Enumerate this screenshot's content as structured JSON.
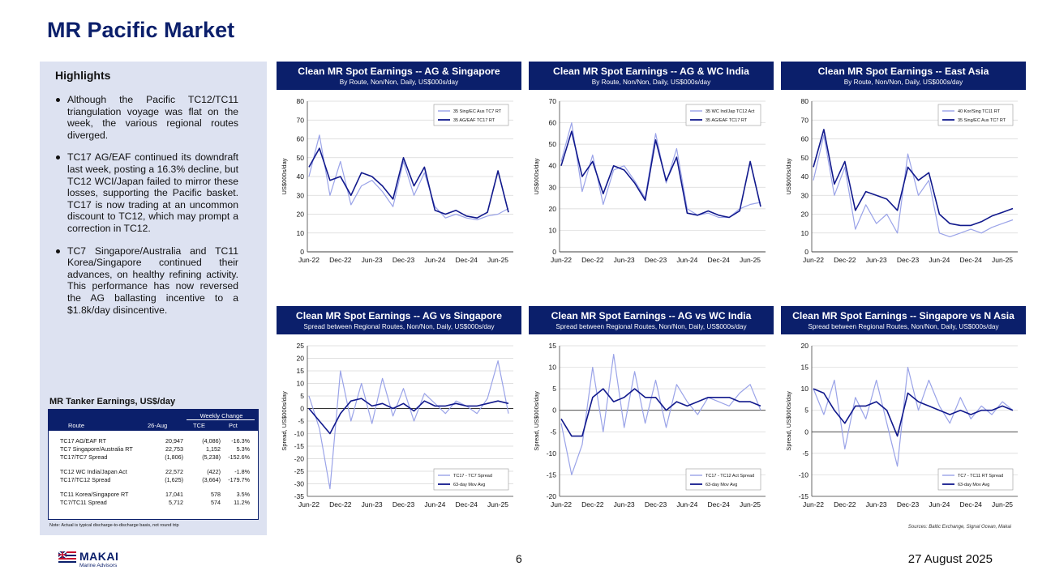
{
  "page": {
    "title": "MR Pacific Market",
    "page_number": "6",
    "date": "27 August 2025",
    "sources": "Sources: Baltic Exchange, Signal Ocean, Makai",
    "logo": {
      "name": "MAKAI",
      "subtitle": "Marine Advisors"
    }
  },
  "highlights": {
    "title": "Highlights",
    "bullets": [
      "Although the Pacific TC12/TC11 triangulation voyage was flat on the week, the various regional routes diverged.",
      "TC17 AG/EAF continued its downdraft last week, posting a 16.3% decline, but TC12 WCI/Japan failed to mirror these losses, supporting the Pacific basket. TC17 is now trading at an uncommon discount to TC12, which may prompt a correction in TC12.",
      "TC7 Singapore/Australia and TC11 Korea/Singapore continued their advances, on healthy refining activity.  This performance has now reversed the AG ballasting incentive to a $1.8k/day disincentive."
    ]
  },
  "earnings_table": {
    "title": "MR Tanker Earnings, US$/day",
    "headers": {
      "route": "Route",
      "date": "26-Aug",
      "weekly_change": "Weekly Change",
      "tce": "TCE",
      "pct": "Pct"
    },
    "rows": [
      {
        "route": "TC17 AG/EAF RT",
        "value": "20,947",
        "tce": "(4,086)",
        "pct": "-16.3%"
      },
      {
        "route": "TC7 Singapore/Australia RT",
        "value": "22,753",
        "tce": "1,152",
        "pct": "5.3%"
      },
      {
        "route": "TC17/TC7 Spread",
        "value": "(1,806)",
        "tce": "(5,238)",
        "pct": "-152.6%"
      },
      {
        "route": "TC12 WC India/Japan Act",
        "value": "22,572",
        "tce": "(422)",
        "pct": "-1.8%"
      },
      {
        "route": "TC17/TC12 Spread",
        "value": "(1,625)",
        "tce": "(3,664)",
        "pct": "-179.7%"
      },
      {
        "route": "TC11 Korea/Singapore RT",
        "value": "17,041",
        "tce": "578",
        "pct": "3.5%"
      },
      {
        "route": "TC7/TC11 Spread",
        "value": "5,712",
        "tce": "574",
        "pct": "11.2%"
      }
    ],
    "note": "Note: Actual is typical discharge-to-discharge basis, not round trip"
  },
  "colors": {
    "navy": "#0b1f6b",
    "light_series": "#9aa3e8",
    "dark_series": "#11198c",
    "panel_bg": "#dde2f1"
  },
  "chart_data": [
    {
      "type": "line",
      "title": "Clean MR Spot Earnings -- AG & Singapore",
      "subtitle": "By Route, Non/Non, Daily, US$000s/day",
      "ylabel": "US$000s/day",
      "ylim": [
        0,
        80
      ],
      "yticks": [
        0,
        10,
        20,
        30,
        40,
        50,
        60,
        70,
        80
      ],
      "xticks": [
        "Jun-22",
        "Dec-22",
        "Jun-23",
        "Dec-23",
        "Jun-24",
        "Dec-24",
        "Jun-25"
      ],
      "x": [
        "2022-06",
        "2022-08",
        "2022-10",
        "2022-12",
        "2023-02",
        "2023-04",
        "2023-06",
        "2023-08",
        "2023-10",
        "2023-12",
        "2024-02",
        "2024-04",
        "2024-06",
        "2024-08",
        "2024-10",
        "2024-12",
        "2025-02",
        "2025-04",
        "2025-06",
        "2025-08"
      ],
      "legend_position": "top-right",
      "series": [
        {
          "name": "35 Sing/EC Aus TC7 RT",
          "style": "light",
          "values": [
            40,
            62,
            30,
            48,
            25,
            35,
            38,
            32,
            24,
            48,
            30,
            42,
            24,
            18,
            20,
            18,
            17,
            19,
            20,
            23
          ]
        },
        {
          "name": "35 AG/EAF TC17 RT",
          "style": "dark",
          "values": [
            45,
            55,
            38,
            40,
            30,
            42,
            40,
            35,
            28,
            50,
            35,
            45,
            22,
            20,
            22,
            19,
            18,
            21,
            43,
            21
          ]
        }
      ]
    },
    {
      "type": "line",
      "title": "Clean MR Spot Earnings -- AG & WC India",
      "subtitle": "By Route, Non/Non, Daily, US$000s/day",
      "ylabel": "US$000s/day",
      "ylim": [
        0,
        70
      ],
      "yticks": [
        0,
        10,
        20,
        30,
        40,
        50,
        60,
        70
      ],
      "xticks": [
        "Jun-22",
        "Dec-22",
        "Jun-23",
        "Dec-23",
        "Jun-24",
        "Dec-24",
        "Jun-25"
      ],
      "x": [
        "2022-06",
        "2022-08",
        "2022-10",
        "2022-12",
        "2023-02",
        "2023-04",
        "2023-06",
        "2023-08",
        "2023-10",
        "2023-12",
        "2024-02",
        "2024-04",
        "2024-06",
        "2024-08",
        "2024-10",
        "2024-12",
        "2025-02",
        "2025-04",
        "2025-06",
        "2025-08"
      ],
      "legend_position": "top-right",
      "series": [
        {
          "name": "35 WC Ind/Jap TC12 Act",
          "style": "light",
          "values": [
            42,
            60,
            28,
            45,
            22,
            38,
            40,
            33,
            25,
            55,
            32,
            48,
            20,
            17,
            18,
            16,
            16,
            20,
            22,
            23
          ]
        },
        {
          "name": "35 AG/EAF TC17 RT",
          "style": "dark",
          "values": [
            40,
            56,
            35,
            42,
            27,
            40,
            38,
            32,
            24,
            52,
            33,
            44,
            18,
            17,
            19,
            17,
            16,
            19,
            42,
            21
          ]
        }
      ]
    },
    {
      "type": "line",
      "title": "Clean MR Spot Earnings -- East Asia",
      "subtitle": "By Route, Non/Non, Daily, US$000s/day",
      "ylabel": "US$000s/day",
      "ylim": [
        0,
        80
      ],
      "yticks": [
        0,
        10,
        20,
        30,
        40,
        50,
        60,
        70,
        80
      ],
      "xticks": [
        "Jun-22",
        "Dec-22",
        "Jun-23",
        "Dec-23",
        "Jun-24",
        "Dec-24",
        "Jun-25"
      ],
      "x": [
        "2022-06",
        "2022-08",
        "2022-10",
        "2022-12",
        "2023-02",
        "2023-04",
        "2023-06",
        "2023-08",
        "2023-10",
        "2023-12",
        "2024-02",
        "2024-04",
        "2024-06",
        "2024-08",
        "2024-10",
        "2024-12",
        "2025-02",
        "2025-04",
        "2025-06",
        "2025-08"
      ],
      "legend_position": "top-right",
      "series": [
        {
          "name": "40 Kor/Sing TC11 RT",
          "style": "light",
          "values": [
            38,
            62,
            30,
            45,
            12,
            25,
            15,
            20,
            10,
            52,
            30,
            38,
            10,
            8,
            10,
            12,
            10,
            13,
            15,
            17
          ]
        },
        {
          "name": "35 Sing/EC Aus TC7 RT",
          "style": "dark",
          "values": [
            45,
            65,
            36,
            48,
            22,
            32,
            30,
            28,
            22,
            45,
            38,
            42,
            20,
            15,
            14,
            14,
            16,
            19,
            21,
            23
          ]
        }
      ]
    },
    {
      "type": "line",
      "title": "Clean MR Spot Earnings -- AG vs Singapore",
      "subtitle": "Spread between Regional Routes, Non/Non, Daily, US$000s/day",
      "ylabel": "Spread, US$000s/day",
      "ylim": [
        -35,
        25
      ],
      "yticks": [
        -35,
        -30,
        -25,
        -20,
        -15,
        -10,
        -5,
        0,
        5,
        10,
        15,
        20,
        25
      ],
      "xticks": [
        "Jun-22",
        "Dec-22",
        "Jun-23",
        "Dec-23",
        "Jun-24",
        "Dec-24",
        "Jun-25"
      ],
      "x": [
        "2022-06",
        "2022-08",
        "2022-10",
        "2022-12",
        "2023-02",
        "2023-04",
        "2023-06",
        "2023-08",
        "2023-10",
        "2023-12",
        "2024-02",
        "2024-04",
        "2024-06",
        "2024-08",
        "2024-10",
        "2024-12",
        "2025-02",
        "2025-04",
        "2025-06",
        "2025-08"
      ],
      "legend_position": "bottom-right",
      "series": [
        {
          "name": "TC17 - TC7 Spread",
          "style": "light",
          "values": [
            5,
            -8,
            -32,
            15,
            -5,
            10,
            -6,
            12,
            -3,
            8,
            -5,
            6,
            2,
            -2,
            3,
            1,
            -2,
            4,
            19,
            -2
          ]
        },
        {
          "name": "63-day Mov Avg",
          "style": "dark",
          "values": [
            0,
            -5,
            -10,
            -2,
            3,
            4,
            1,
            2,
            0,
            2,
            -1,
            3,
            1,
            1,
            2,
            1,
            1,
            2,
            3,
            2
          ]
        }
      ]
    },
    {
      "type": "line",
      "title": "Clean MR Spot Earnings -- AG vs WC India",
      "subtitle": "Spread between Regional Routes, Non/Non, Daily, US$000s/day",
      "ylabel": "Spread, US$000s/day",
      "ylim": [
        -20,
        15
      ],
      "yticks": [
        -20,
        -15,
        -10,
        -5,
        0,
        5,
        10,
        15
      ],
      "xticks": [
        "Jun-22",
        "Dec-22",
        "Jun-23",
        "Dec-23",
        "Jun-24",
        "Dec-24",
        "Jun-25"
      ],
      "x": [
        "2022-06",
        "2022-08",
        "2022-10",
        "2022-12",
        "2023-02",
        "2023-04",
        "2023-06",
        "2023-08",
        "2023-10",
        "2023-12",
        "2024-02",
        "2024-04",
        "2024-06",
        "2024-08",
        "2024-10",
        "2024-12",
        "2025-02",
        "2025-04",
        "2025-06",
        "2025-08"
      ],
      "legend_position": "bottom-right",
      "series": [
        {
          "name": "TC17 - TC12 Act Spread",
          "style": "light",
          "values": [
            -3,
            -15,
            -8,
            10,
            -5,
            13,
            -4,
            9,
            -3,
            7,
            -4,
            6,
            2,
            -1,
            3,
            2,
            1,
            4,
            6,
            0
          ]
        },
        {
          "name": "63-day Mov Avg",
          "style": "dark",
          "values": [
            -2,
            -6,
            -6,
            3,
            5,
            2,
            3,
            5,
            3,
            3,
            0,
            2,
            1,
            2,
            3,
            3,
            3,
            2,
            2,
            1
          ]
        }
      ]
    },
    {
      "type": "line",
      "title": "Clean MR Spot Earnings -- Singapore vs N Asia",
      "subtitle": "Spread between Regional Routes, Non/Non, Daily, US$000s/day",
      "ylabel": "Spread, US$000s/day",
      "ylim": [
        -15,
        20
      ],
      "yticks": [
        -15,
        -10,
        -5,
        0,
        5,
        10,
        15,
        20
      ],
      "xticks": [
        "Jun-22",
        "Dec-22",
        "Jun-23",
        "Dec-23",
        "Jun-24",
        "Dec-24",
        "Jun-25"
      ],
      "x": [
        "2022-06",
        "2022-08",
        "2022-10",
        "2022-12",
        "2023-02",
        "2023-04",
        "2023-06",
        "2023-08",
        "2023-10",
        "2023-12",
        "2024-02",
        "2024-04",
        "2024-06",
        "2024-08",
        "2024-10",
        "2024-12",
        "2025-02",
        "2025-04",
        "2025-06",
        "2025-08"
      ],
      "legend_position": "bottom-right",
      "series": [
        {
          "name": "TC7 - TC11 RT Spread",
          "style": "light",
          "values": [
            10,
            4,
            12,
            -4,
            8,
            3,
            12,
            2,
            -8,
            15,
            5,
            12,
            6,
            2,
            8,
            3,
            6,
            4,
            7,
            5
          ]
        },
        {
          "name": "63-day Mov Avg",
          "style": "dark",
          "values": [
            10,
            9,
            5,
            2,
            6,
            6,
            7,
            5,
            -1,
            9,
            7,
            6,
            5,
            4,
            5,
            4,
            5,
            5,
            6,
            5
          ]
        }
      ]
    }
  ]
}
